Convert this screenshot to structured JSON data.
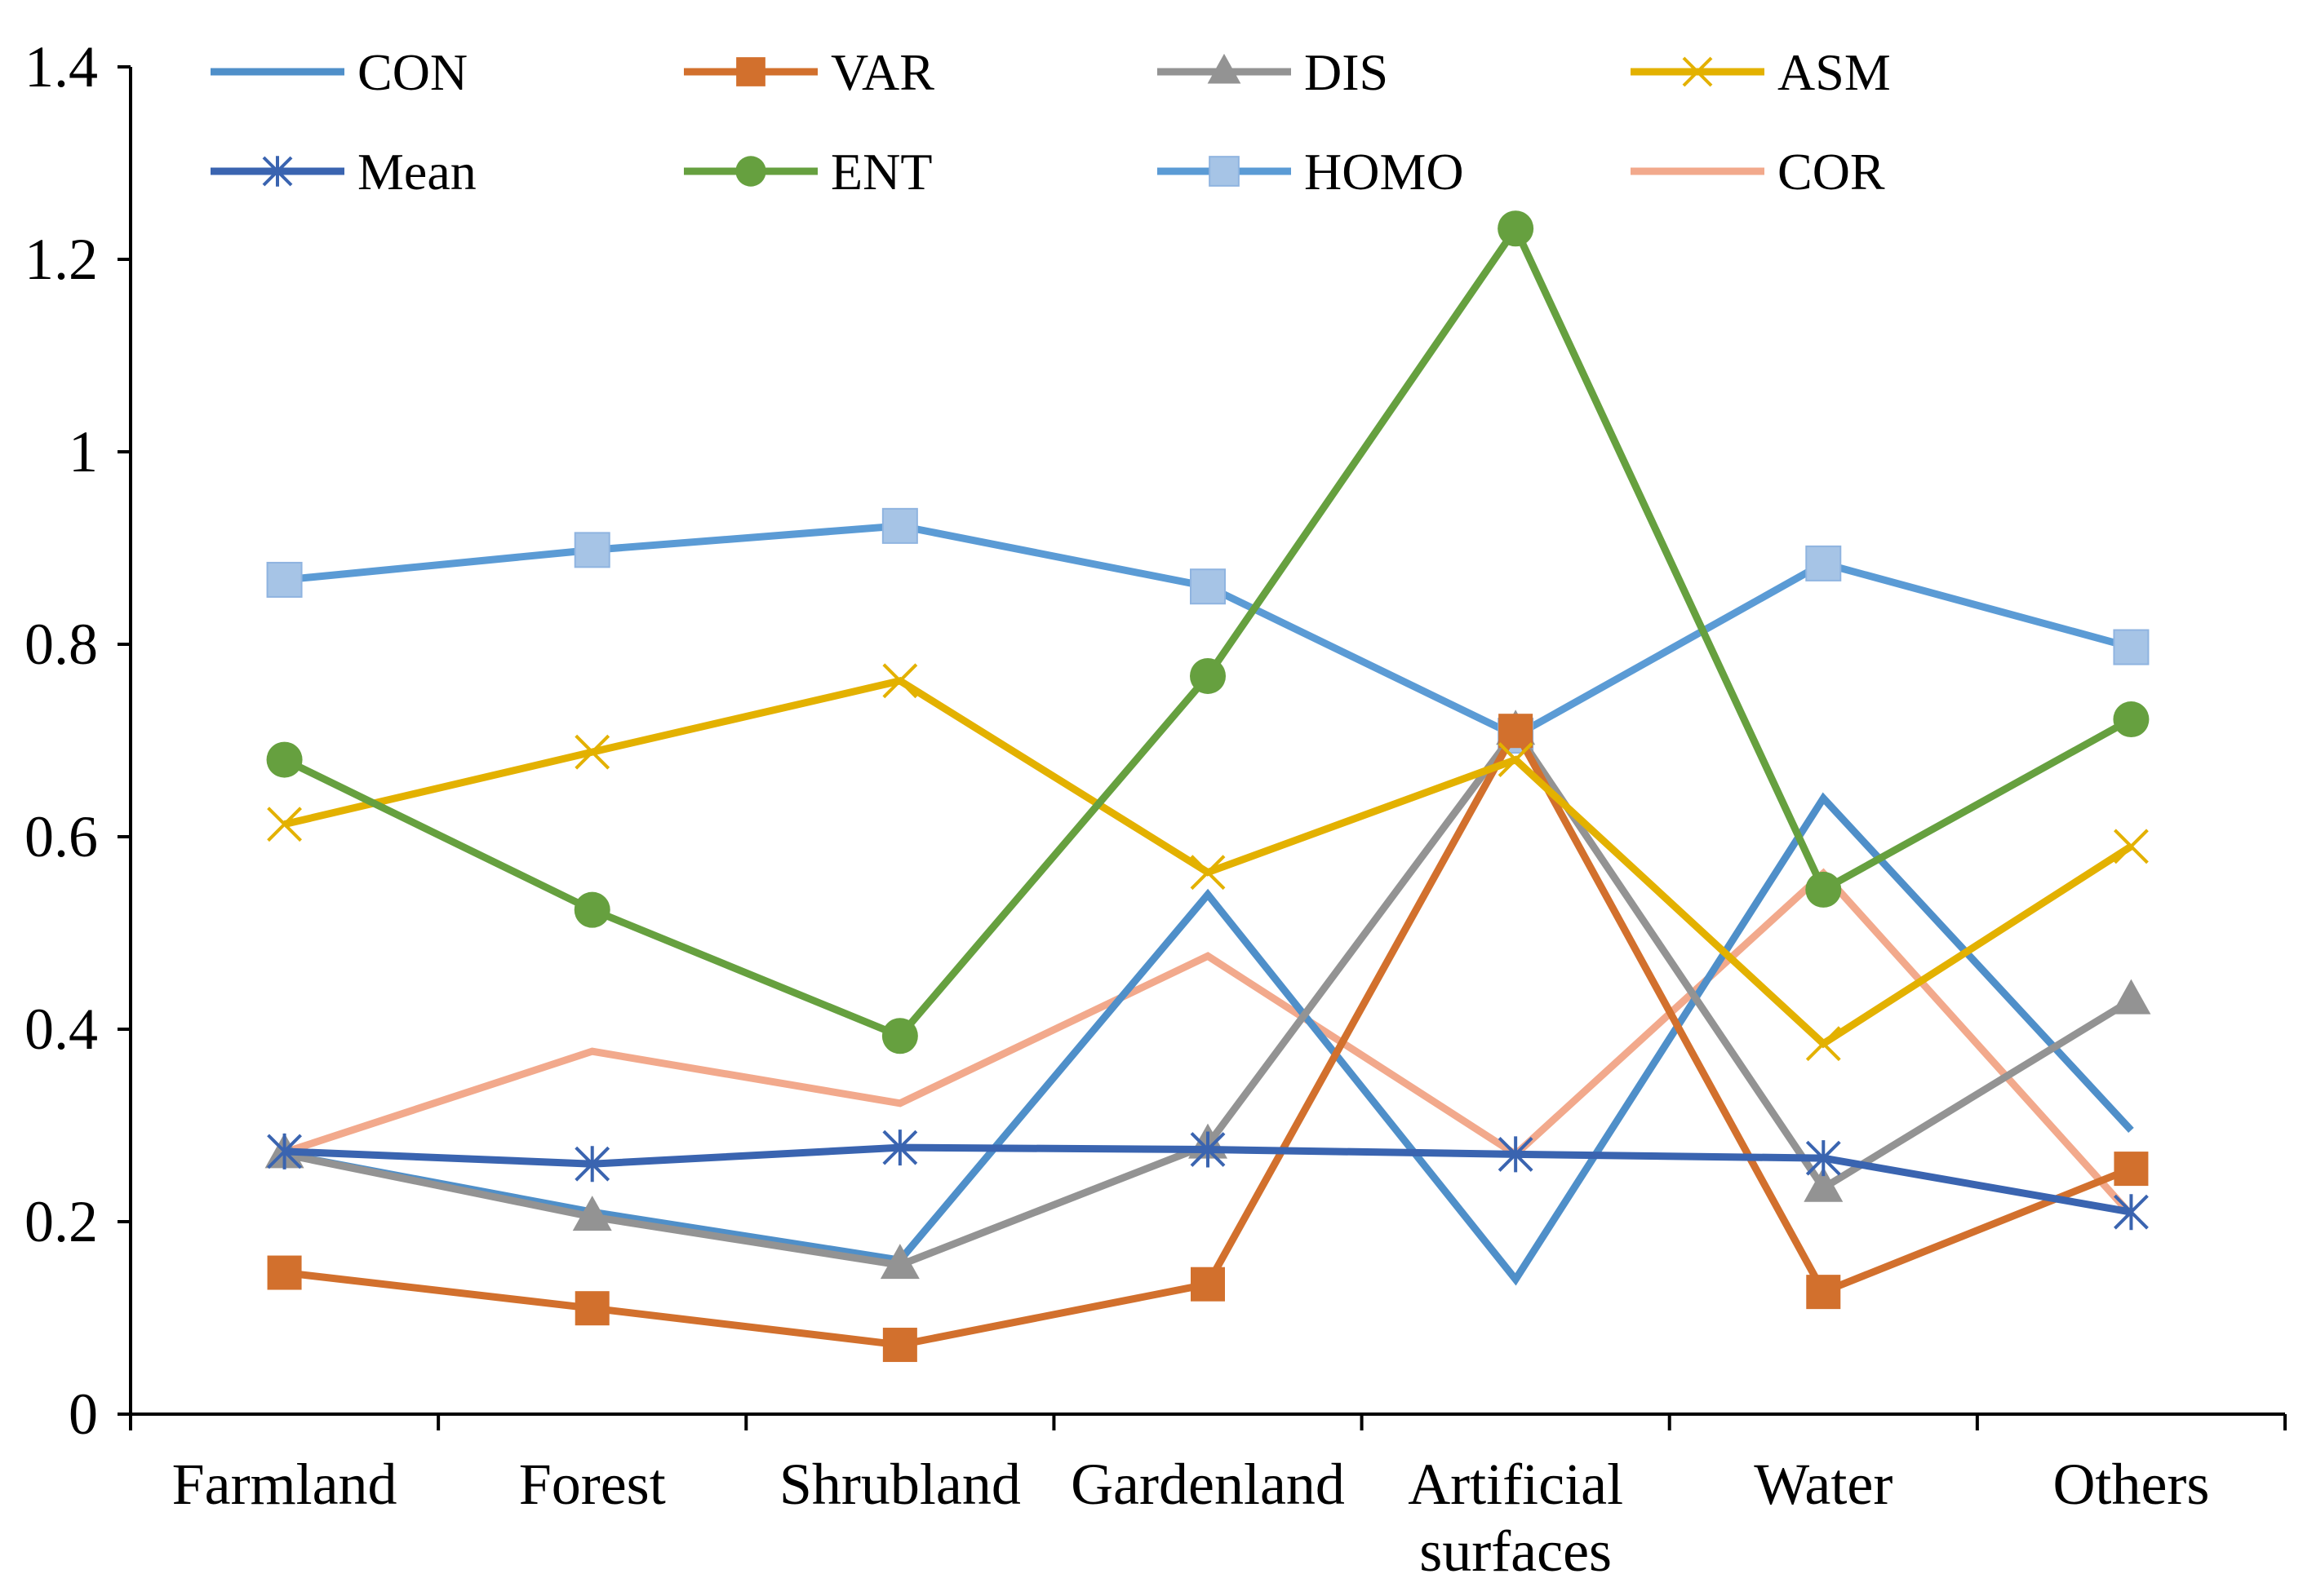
{
  "chart_data": {
    "type": "line",
    "title": "",
    "xlabel": "",
    "ylabel": "",
    "ylim": [
      0,
      1.4
    ],
    "yticks": [
      0,
      0.2,
      0.4,
      0.6,
      0.8,
      1,
      1.2,
      1.4
    ],
    "ytick_labels": [
      "0",
      "0.2",
      "0.4",
      "0.6",
      "0.8",
      "1",
      "1.2",
      "1.4"
    ],
    "categories": [
      "Farmland",
      "Forest",
      "Shrubland",
      "Gardenland",
      "Artificial surfaces",
      "Water",
      "Others"
    ],
    "category_lines": [
      [
        "Farmland"
      ],
      [
        "Forest"
      ],
      [
        "Shrubland"
      ],
      [
        "Gardenland"
      ],
      [
        "Artificial",
        "surfaces"
      ],
      [
        "Water"
      ],
      [
        "Others"
      ]
    ],
    "legend_position": "top",
    "grid": false,
    "series": [
      {
        "name": "CON",
        "color": "#4F8FC9",
        "marker": "none",
        "values": [
          0.27,
          0.21,
          0.16,
          0.54,
          0.14,
          0.64,
          0.295
        ]
      },
      {
        "name": "VAR",
        "color": "#D2702D",
        "marker": "square",
        "values": [
          0.147,
          0.11,
          0.072,
          0.135,
          0.71,
          0.127,
          0.255
        ]
      },
      {
        "name": "DIS",
        "color": "#939393",
        "marker": "triangle",
        "values": [
          0.27,
          0.205,
          0.155,
          0.28,
          0.71,
          0.235,
          0.43
        ]
      },
      {
        "name": "ASM",
        "color": "#E3B100",
        "marker": "x",
        "values": [
          0.613,
          0.688,
          0.762,
          0.563,
          0.68,
          0.385,
          0.59
        ]
      },
      {
        "name": "Mean",
        "color": "#3A64B0",
        "marker": "asterisk",
        "values": [
          0.273,
          0.26,
          0.277,
          0.275,
          0.27,
          0.266,
          0.21
        ]
      },
      {
        "name": "ENT",
        "color": "#66A03F",
        "marker": "circle",
        "values": [
          0.68,
          0.524,
          0.393,
          0.767,
          1.232,
          0.545,
          0.722
        ]
      },
      {
        "name": "HOMO",
        "color": "#5B9BD5",
        "marker": "square-light",
        "values": [
          0.867,
          0.898,
          0.923,
          0.86,
          0.705,
          0.884,
          0.797
        ]
      },
      {
        "name": "COR",
        "color": "#F2A98C",
        "marker": "none",
        "values": [
          0.272,
          0.377,
          0.323,
          0.476,
          0.27,
          0.562,
          0.207
        ]
      }
    ],
    "draw_order": [
      "COR",
      "HOMO",
      "CON",
      "DIS",
      "VAR",
      "ASM",
      "ENT",
      "Mean"
    ]
  }
}
